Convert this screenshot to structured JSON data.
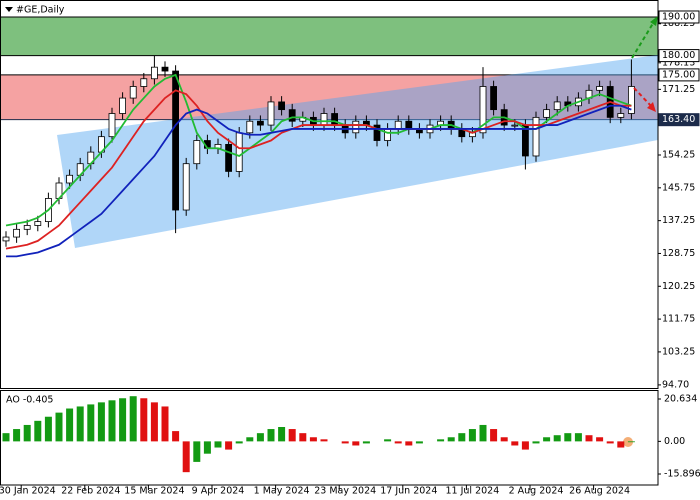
{
  "chart_data": [
    {
      "type": "candlestick",
      "title": "#GE,Daily",
      "categories": [
        null,
        null,
        "30 Jan 2024",
        null,
        null,
        null,
        null,
        null,
        "22 Feb 2024",
        null,
        null,
        null,
        null,
        null,
        "15 Mar 2024",
        null,
        null,
        null,
        null,
        null,
        "9 Apr 2024",
        null,
        null,
        null,
        null,
        null,
        "1 May 2024",
        null,
        null,
        null,
        null,
        null,
        "23 May 2024",
        null,
        null,
        null,
        null,
        null,
        "17 Jun 2024",
        null,
        null,
        null,
        null,
        null,
        "11 Jul 2024",
        null,
        null,
        null,
        null,
        null,
        "2 Aug 2024",
        null,
        null,
        null,
        null,
        null,
        "26 Aug 2024",
        null,
        null,
        null
      ],
      "open": [
        132,
        133,
        135,
        136,
        137,
        143,
        147,
        149,
        152,
        155,
        159,
        165,
        169,
        172,
        174,
        177,
        176,
        140,
        152,
        158,
        156,
        157,
        150,
        160,
        163,
        162,
        168,
        166,
        163,
        164,
        162,
        165,
        162,
        160,
        163,
        162,
        158,
        161,
        163,
        161,
        160,
        162,
        163,
        161,
        159,
        160,
        172,
        166,
        162,
        162,
        154,
        164,
        166,
        168,
        167,
        169,
        171,
        172,
        164,
        165
      ],
      "high": [
        134.5,
        136.5,
        137.5,
        138.5,
        144.5,
        148.5,
        150.5,
        153.5,
        156.5,
        160.5,
        166.5,
        170.5,
        173.5,
        175.5,
        180,
        178.5,
        177.5,
        153.5,
        159.5,
        159.5,
        158.5,
        158.5,
        161.5,
        164.5,
        164.5,
        169.5,
        169.5,
        167.5,
        165.5,
        165.5,
        166.5,
        166.5,
        163.5,
        164.5,
        164.5,
        163.5,
        162.5,
        164.5,
        164.5,
        162.5,
        163.5,
        164.5,
        164.5,
        162.5,
        161.5,
        177,
        173.5,
        167.5,
        163.5,
        163.5,
        165.5,
        167.5,
        169.5,
        169.5,
        170.5,
        172.5,
        173.5,
        173.5,
        166.5,
        179
      ],
      "low": [
        130.5,
        131.5,
        133.5,
        134.5,
        135.5,
        141.5,
        145.5,
        147.5,
        150.5,
        153.5,
        157.5,
        163.5,
        167.5,
        170.5,
        172.5,
        174.5,
        134,
        138.5,
        150.5,
        154.5,
        154.5,
        148.5,
        148.5,
        158.5,
        160.5,
        160.5,
        164.5,
        161.5,
        161.5,
        160.5,
        160.5,
        160.5,
        158.5,
        158.5,
        160.5,
        156.5,
        156.5,
        159.5,
        159.5,
        158.5,
        158.5,
        160.5,
        159.5,
        157.5,
        157.5,
        158.5,
        164.5,
        160.5,
        160.5,
        150.5,
        152.5,
        162.5,
        164.5,
        165.5,
        165.5,
        167.5,
        169.5,
        162.5,
        162.5,
        163.5
      ],
      "close": [
        133,
        135,
        136,
        137,
        143,
        147,
        149,
        152,
        155,
        159,
        165,
        169,
        172,
        174,
        177,
        176,
        140,
        152,
        158,
        156,
        157,
        150,
        160,
        163,
        162,
        168,
        166,
        163,
        164,
        162,
        165,
        162,
        160,
        163,
        162,
        158,
        161,
        163,
        161,
        160,
        162,
        163,
        161,
        159,
        160,
        172,
        166,
        162,
        162,
        154,
        164,
        166,
        168,
        167,
        169,
        171,
        172,
        164,
        165,
        172
      ],
      "up_color": "#ffffff",
      "down_color": "#000000",
      "lines": [
        {
          "color": "#22bb33",
          "values": [
            136,
            136.5,
            137,
            138,
            140,
            143,
            146,
            149,
            152,
            155,
            158,
            162,
            166,
            169,
            172,
            174,
            175,
            168,
            160,
            156,
            156,
            155,
            154,
            156,
            158,
            160,
            163,
            164,
            164,
            163,
            163,
            163,
            162,
            162,
            162,
            161,
            160,
            160,
            161,
            161,
            161,
            162,
            162,
            161,
            160,
            162,
            164,
            164,
            163,
            161,
            161,
            163,
            165,
            167,
            168,
            169,
            170,
            169,
            168,
            167
          ]
        },
        {
          "color": "#dd2222",
          "values": [
            130,
            130.5,
            131,
            132,
            134,
            136,
            139,
            142,
            145,
            148,
            151,
            155,
            159,
            163,
            166,
            169,
            171,
            170,
            167,
            163,
            160,
            158,
            156,
            156,
            157,
            158,
            160,
            161,
            162,
            162,
            162,
            162,
            162,
            162,
            162,
            161,
            161,
            161,
            161,
            161,
            161,
            161,
            161,
            161,
            160,
            161,
            162,
            163,
            163,
            162,
            162,
            162,
            163,
            164,
            165,
            166,
            167,
            168,
            167,
            167
          ]
        },
        {
          "color": "#1122bb",
          "values": [
            128,
            128,
            128.5,
            129,
            130,
            131,
            133,
            135,
            137,
            139,
            142,
            145,
            148,
            151,
            154,
            158,
            162,
            165,
            166,
            165,
            163,
            161,
            160,
            159.5,
            159.5,
            160,
            160.5,
            161,
            161,
            161,
            161,
            161,
            161,
            161,
            161,
            161,
            161,
            161,
            161,
            161,
            161,
            161,
            161,
            161,
            161,
            161,
            161,
            161,
            161,
            161,
            161,
            162,
            162,
            163,
            164,
            165,
            166,
            167,
            167,
            166
          ]
        }
      ],
      "ylim": [
        93.9,
        194.4
      ],
      "yticks": [
        188.25,
        178.13,
        171.25,
        154.25,
        145.75,
        137.25,
        128.75,
        120.25,
        111.75,
        103.25,
        {
          "value": 94.7,
          "label": "94.70"
        }
      ],
      "levels": [
        {
          "value": 190,
          "label": "190.00",
          "color": "#000000",
          "box": "#ffffff",
          "text_color": "#000000"
        },
        {
          "value": 180,
          "label": "180.00",
          "color": "#000000",
          "box": "#ffffff",
          "text_color": "#000000"
        },
        {
          "value": 175,
          "label": "175.00",
          "color": "#000000",
          "box": "#ffffff",
          "text_color": "#000000"
        },
        {
          "value": 163.4,
          "label": "163.40",
          "color": "#1c2b4a",
          "box": "#1c2b4a",
          "text_color": "#ffffff"
        }
      ],
      "zones": [
        {
          "from": 180,
          "to": 190,
          "color": "rgba(40,150,40,0.6)"
        },
        {
          "from": 163.4,
          "to": 175,
          "color": "rgba(235,70,70,0.5)"
        }
      ]
    },
    {
      "type": "bar",
      "title": "AO -0.405",
      "values": [
        4,
        6,
        8,
        10,
        12,
        14,
        16,
        17,
        18,
        19,
        20,
        21,
        22,
        21,
        19,
        17,
        5,
        -15,
        -10,
        -6,
        -3,
        -4,
        -1,
        2,
        4,
        6,
        7,
        6,
        4,
        2,
        1,
        0,
        -1,
        -2,
        -1,
        0,
        1,
        -1,
        -2,
        -1,
        0,
        1,
        2,
        4,
        6,
        8,
        6,
        2,
        -2,
        -4,
        -1,
        2,
        3,
        4,
        4,
        3,
        2,
        -1,
        -3,
        -0.405
      ],
      "up_color": "#139a13",
      "down_color": "#e01010",
      "ylim": [
        -21.25,
        25.02
      ],
      "yticks": [
        20.634,
        {
          "value": 0,
          "label": "0.00"
        },
        -15.896
      ]
    }
  ]
}
